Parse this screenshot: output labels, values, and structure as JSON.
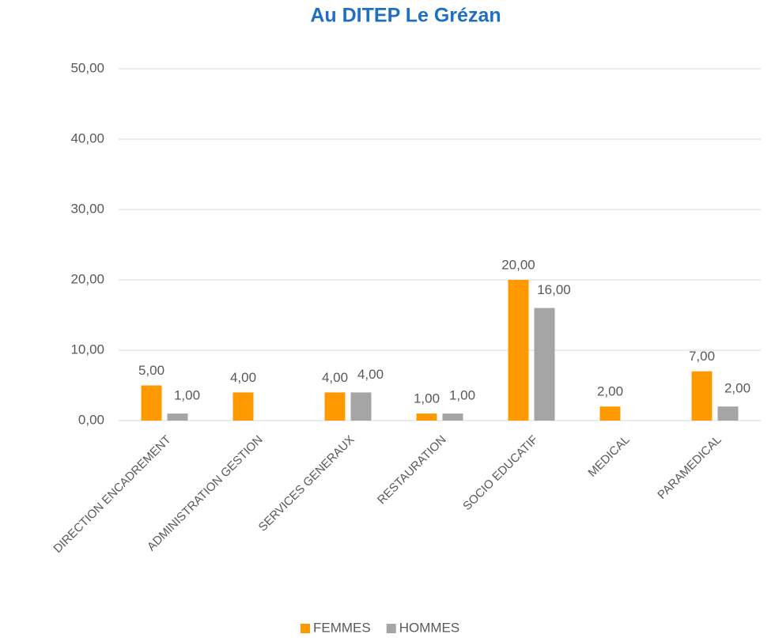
{
  "chart_data": {
    "type": "bar",
    "title": "Au DITEP Le Grézan",
    "categories": [
      "DIRECTION ENCADREMENT",
      "ADMINISTRATION GESTION",
      "SERVICES GENERAUX",
      "RESTAURATION",
      "SOCIO EDUCATIF",
      "MEDICAL",
      "PARAMEDICAL"
    ],
    "series": [
      {
        "name": "FEMMES",
        "color": "#ff9900",
        "values": [
          5,
          4,
          4,
          1,
          20,
          2,
          7
        ],
        "value_labels": [
          "5,00",
          "4,00",
          "4,00",
          "1,00",
          "20,00",
          "2,00",
          "7,00"
        ]
      },
      {
        "name": "HOMMES",
        "color": "#a5a5a5",
        "values": [
          1,
          null,
          4,
          1,
          16,
          null,
          2
        ],
        "value_labels": [
          "1,00",
          null,
          "4,00",
          "1,00",
          "16,00",
          null,
          "2,00"
        ]
      }
    ],
    "ylim": [
      0,
      50
    ],
    "yticks": [
      {
        "value": 0,
        "label": "0,00"
      },
      {
        "value": 10,
        "label": "10,00"
      },
      {
        "value": 20,
        "label": "20,00"
      },
      {
        "value": 30,
        "label": "30,00"
      },
      {
        "value": 40,
        "label": "40,00"
      },
      {
        "value": 50,
        "label": "50,00"
      }
    ],
    "grid": true,
    "legend": "bottom"
  }
}
